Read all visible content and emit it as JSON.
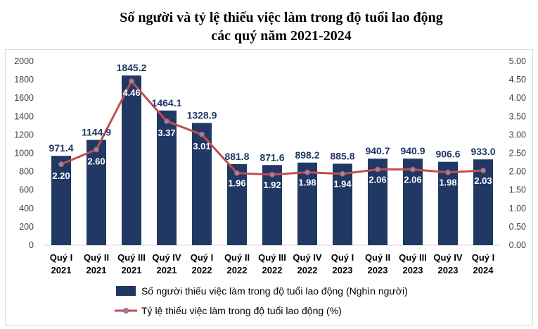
{
  "chart_data": {
    "type": "bar",
    "title": [
      "Số người và tỷ lệ thiếu việc làm trong độ tuổi lao động",
      "các quý năm 2021-2024"
    ],
    "categories": [
      [
        "Quý I",
        "2021"
      ],
      [
        "Quý II",
        "2021"
      ],
      [
        "Quý III",
        "2021"
      ],
      [
        "Quý IV",
        "2021"
      ],
      [
        "Quý I",
        "2022"
      ],
      [
        "Quý II",
        "2022"
      ],
      [
        "Quý III",
        "2022"
      ],
      [
        "Quý IV",
        "2022"
      ],
      [
        "Quý I",
        "2023"
      ],
      [
        "Quý II",
        "2023"
      ],
      [
        "Quý III",
        "2023"
      ],
      [
        "Quý IV",
        "2023"
      ],
      [
        "Quý I",
        "2024"
      ]
    ],
    "series": [
      {
        "name": "Số người thiếu việc làm trong độ tuổi lao động (Nghìn người)",
        "type": "bar",
        "axis": "left",
        "color": "#1f3864",
        "values": [
          971.4,
          1144.9,
          1845.2,
          1464.1,
          1328.9,
          881.8,
          871.6,
          898.2,
          885.8,
          940.7,
          940.9,
          906.6,
          933.0
        ],
        "labels": [
          "971.4",
          "1144.9",
          "1845.2",
          "1464.1",
          "1328.9",
          "881.8",
          "871.6",
          "898.2",
          "885.8",
          "940.7",
          "940.9",
          "906.6",
          "933.0"
        ]
      },
      {
        "name": "Tỷ lệ thiếu việc làm trong độ tuổi lao động (%)",
        "type": "line",
        "axis": "right",
        "color": "#c0504d",
        "marker_color": "#8e87b5",
        "values": [
          2.2,
          2.6,
          4.46,
          3.37,
          3.01,
          1.96,
          1.92,
          1.98,
          1.94,
          2.06,
          2.06,
          1.98,
          2.03
        ],
        "labels": [
          "2.20",
          "2.60",
          "4.46",
          "3.37",
          "3.01",
          "1.96",
          "1.92",
          "1.98",
          "1.94",
          "2.06",
          "2.06",
          "1.98",
          "2.03"
        ]
      }
    ],
    "y_left": {
      "ylim": [
        0,
        2000
      ],
      "ticks": [
        "0",
        "200",
        "400",
        "600",
        "800",
        "1000",
        "1200",
        "1400",
        "1600",
        "1800",
        "2000"
      ]
    },
    "y_right": {
      "ylim": [
        0,
        5
      ],
      "ticks": [
        "0.00",
        "0.50",
        "1.00",
        "1.50",
        "2.00",
        "2.50",
        "3.00",
        "3.50",
        "4.00",
        "4.50",
        "5.00"
      ]
    },
    "grid": false,
    "legend_position": "bottom"
  }
}
